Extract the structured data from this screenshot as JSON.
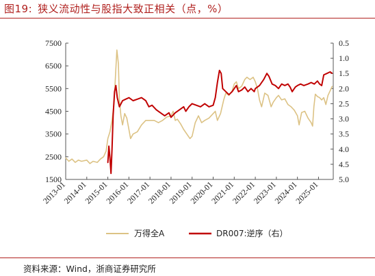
{
  "figure": {
    "number": "图19:",
    "title": "狭义流动性与股指大致正相关（点，%）",
    "source_label": "资料来源：",
    "source_text": "Wind，浙商证券研究所"
  },
  "colors": {
    "brand_red": "#b0201e",
    "series_wind": "#dcc284",
    "series_dr007": "#c00000"
  },
  "chart_data": {
    "type": "line",
    "x_tick_labels": [
      "2013-01",
      "2014-01",
      "2015-01",
      "2016-01",
      "2017-01",
      "2018-01",
      "2019-01",
      "2020-01",
      "2021-01",
      "2022-01",
      "2023-01",
      "2024-01",
      "2025-01"
    ],
    "x_range": [
      2013.0,
      2025.7
    ],
    "y_left": {
      "ticks": [
        1500,
        2500,
        3500,
        4500,
        5500,
        6500,
        7500
      ],
      "tick_labels": [
        "1500",
        "2500",
        "3500",
        "4500",
        "5500",
        "6500",
        "7500"
      ],
      "range": [
        1500,
        7500
      ]
    },
    "y_right": {
      "inverted": true,
      "ticks": [
        0.5,
        1.0,
        1.5,
        2.0,
        2.5,
        3.0,
        3.5,
        4.0,
        4.5,
        5.0
      ],
      "tick_labels": [
        "0.5",
        "1.0",
        "1.5",
        "2.0",
        "2.5",
        "3.0",
        "3.5",
        "4.0",
        "4.5",
        "5.0"
      ],
      "range": [
        0.5,
        5.0
      ]
    },
    "series": [
      {
        "name": "万得全A",
        "axis": "left",
        "color": "#dcc284",
        "points": [
          [
            2013.0,
            2450
          ],
          [
            2013.15,
            2300
          ],
          [
            2013.3,
            2400
          ],
          [
            2013.45,
            2250
          ],
          [
            2013.6,
            2350
          ],
          [
            2013.75,
            2300
          ],
          [
            2014.0,
            2350
          ],
          [
            2014.15,
            2200
          ],
          [
            2014.3,
            2300
          ],
          [
            2014.5,
            2250
          ],
          [
            2014.65,
            2400
          ],
          [
            2014.8,
            2500
          ],
          [
            2014.92,
            2750
          ],
          [
            2015.0,
            3300
          ],
          [
            2015.1,
            3600
          ],
          [
            2015.2,
            4100
          ],
          [
            2015.3,
            4900
          ],
          [
            2015.37,
            6200
          ],
          [
            2015.43,
            7200
          ],
          [
            2015.5,
            6600
          ],
          [
            2015.55,
            5000
          ],
          [
            2015.62,
            4300
          ],
          [
            2015.7,
            3900
          ],
          [
            2015.8,
            4400
          ],
          [
            2015.9,
            4200
          ],
          [
            2016.0,
            3700
          ],
          [
            2016.08,
            3300
          ],
          [
            2016.2,
            3500
          ],
          [
            2016.4,
            3600
          ],
          [
            2016.6,
            3900
          ],
          [
            2016.8,
            4100
          ],
          [
            2017.0,
            4100
          ],
          [
            2017.2,
            4100
          ],
          [
            2017.4,
            4000
          ],
          [
            2017.6,
            4100
          ],
          [
            2017.8,
            4250
          ],
          [
            2018.0,
            4300
          ],
          [
            2018.1,
            4500
          ],
          [
            2018.2,
            4100
          ],
          [
            2018.3,
            4150
          ],
          [
            2018.45,
            3950
          ],
          [
            2018.6,
            3700
          ],
          [
            2018.75,
            3500
          ],
          [
            2018.9,
            3300
          ],
          [
            2019.0,
            3400
          ],
          [
            2019.15,
            4000
          ],
          [
            2019.3,
            4300
          ],
          [
            2019.45,
            4000
          ],
          [
            2019.6,
            4100
          ],
          [
            2019.8,
            4200
          ],
          [
            2020.0,
            4400
          ],
          [
            2020.1,
            4500
          ],
          [
            2020.2,
            4100
          ],
          [
            2020.35,
            4400
          ],
          [
            2020.5,
            5000
          ],
          [
            2020.6,
            5300
          ],
          [
            2020.75,
            5200
          ],
          [
            2020.9,
            5400
          ],
          [
            2021.0,
            5700
          ],
          [
            2021.1,
            5800
          ],
          [
            2021.2,
            5500
          ],
          [
            2021.35,
            5600
          ],
          [
            2021.5,
            5900
          ],
          [
            2021.6,
            6000
          ],
          [
            2021.75,
            5900
          ],
          [
            2021.9,
            6000
          ],
          [
            2022.0,
            5800
          ],
          [
            2022.1,
            5500
          ],
          [
            2022.2,
            5000
          ],
          [
            2022.3,
            4700
          ],
          [
            2022.45,
            5300
          ],
          [
            2022.6,
            5200
          ],
          [
            2022.75,
            4700
          ],
          [
            2022.85,
            4900
          ],
          [
            2023.0,
            5100
          ],
          [
            2023.1,
            5200
          ],
          [
            2023.25,
            5000
          ],
          [
            2023.4,
            5050
          ],
          [
            2023.55,
            4800
          ],
          [
            2023.7,
            4700
          ],
          [
            2023.85,
            4550
          ],
          [
            2024.0,
            4300
          ],
          [
            2024.08,
            3900
          ],
          [
            2024.2,
            4450
          ],
          [
            2024.35,
            4500
          ],
          [
            2024.5,
            4200
          ],
          [
            2024.65,
            4000
          ],
          [
            2024.72,
            3850
          ],
          [
            2024.78,
            4700
          ],
          [
            2024.85,
            5250
          ],
          [
            2024.95,
            5150
          ],
          [
            2025.05,
            5100
          ],
          [
            2025.15,
            5000
          ],
          [
            2025.25,
            5100
          ],
          [
            2025.35,
            4800
          ],
          [
            2025.45,
            5200
          ],
          [
            2025.55,
            5400
          ],
          [
            2025.65,
            5600
          ]
        ]
      },
      {
        "name": "DR007:逆序（右）",
        "axis": "right",
        "color": "#c00000",
        "points": [
          [
            2015.0,
            4.45
          ],
          [
            2015.05,
            3.9
          ],
          [
            2015.1,
            4.3
          ],
          [
            2015.15,
            4.8
          ],
          [
            2015.2,
            4.0
          ],
          [
            2015.25,
            2.9
          ],
          [
            2015.32,
            2.1
          ],
          [
            2015.38,
            1.9
          ],
          [
            2015.45,
            2.3
          ],
          [
            2015.55,
            2.6
          ],
          [
            2015.7,
            2.4
          ],
          [
            2015.85,
            2.35
          ],
          [
            2016.0,
            2.3
          ],
          [
            2016.2,
            2.4
          ],
          [
            2016.4,
            2.35
          ],
          [
            2016.6,
            2.3
          ],
          [
            2016.8,
            2.4
          ],
          [
            2016.95,
            2.6
          ],
          [
            2017.1,
            2.55
          ],
          [
            2017.3,
            2.7
          ],
          [
            2017.5,
            2.8
          ],
          [
            2017.7,
            2.9
          ],
          [
            2017.9,
            2.8
          ],
          [
            2018.0,
            2.95
          ],
          [
            2018.2,
            2.8
          ],
          [
            2018.4,
            2.7
          ],
          [
            2018.6,
            2.6
          ],
          [
            2018.7,
            2.75
          ],
          [
            2018.85,
            2.6
          ],
          [
            2019.0,
            2.5
          ],
          [
            2019.2,
            2.55
          ],
          [
            2019.4,
            2.6
          ],
          [
            2019.6,
            2.5
          ],
          [
            2019.8,
            2.6
          ],
          [
            2020.0,
            2.55
          ],
          [
            2020.1,
            2.3
          ],
          [
            2020.2,
            1.8
          ],
          [
            2020.3,
            1.4
          ],
          [
            2020.38,
            1.5
          ],
          [
            2020.45,
            2.0
          ],
          [
            2020.6,
            2.1
          ],
          [
            2020.75,
            2.2
          ],
          [
            2020.9,
            2.1
          ],
          [
            2021.0,
            2.0
          ],
          [
            2021.1,
            1.9
          ],
          [
            2021.2,
            2.1
          ],
          [
            2021.35,
            2.05
          ],
          [
            2021.5,
            1.95
          ],
          [
            2021.65,
            2.1
          ],
          [
            2021.8,
            2.0
          ],
          [
            2021.95,
            2.1
          ],
          [
            2022.0,
            2.0
          ],
          [
            2022.2,
            1.9
          ],
          [
            2022.4,
            1.7
          ],
          [
            2022.55,
            1.5
          ],
          [
            2022.65,
            1.6
          ],
          [
            2022.8,
            1.85
          ],
          [
            2022.95,
            1.9
          ],
          [
            2023.1,
            2.0
          ],
          [
            2023.25,
            1.85
          ],
          [
            2023.4,
            1.9
          ],
          [
            2023.55,
            1.85
          ],
          [
            2023.65,
            1.95
          ],
          [
            2023.75,
            2.1
          ],
          [
            2023.9,
            1.95
          ],
          [
            2024.0,
            1.9
          ],
          [
            2024.15,
            1.85
          ],
          [
            2024.3,
            1.9
          ],
          [
            2024.5,
            1.85
          ],
          [
            2024.65,
            1.8
          ],
          [
            2024.8,
            1.85
          ],
          [
            2024.95,
            1.75
          ],
          [
            2025.05,
            1.85
          ],
          [
            2025.15,
            1.9
          ],
          [
            2025.25,
            1.55
          ],
          [
            2025.4,
            1.5
          ],
          [
            2025.55,
            1.45
          ],
          [
            2025.65,
            1.5
          ]
        ]
      }
    ],
    "legend": {
      "placement": "bottom",
      "entries": [
        "万得全A",
        "DR007:逆序（右）"
      ]
    },
    "grid": false
  }
}
